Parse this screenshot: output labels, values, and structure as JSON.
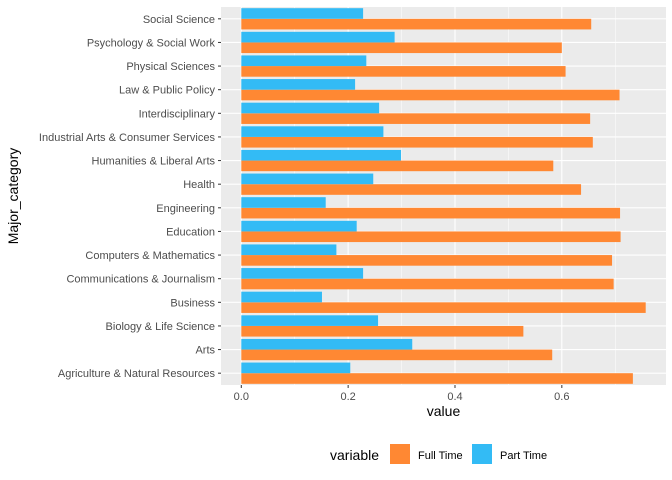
{
  "chart_data": {
    "type": "bar",
    "orientation": "horizontal",
    "position": "dodge",
    "categories": [
      "Agriculture & Natural Resources",
      "Arts",
      "Biology & Life Science",
      "Business",
      "Communications & Journalism",
      "Computers & Mathematics",
      "Education",
      "Engineering",
      "Health",
      "Humanities & Liberal Arts",
      "Industrial Arts & Consumer Services",
      "Interdisciplinary",
      "Law & Public Policy",
      "Physical Sciences",
      "Psychology & Social Work",
      "Social Science"
    ],
    "series": [
      {
        "name": "Full Time",
        "color": "#FF8833",
        "values": [
          0.733,
          0.582,
          0.528,
          0.757,
          0.697,
          0.694,
          0.71,
          0.709,
          0.636,
          0.584,
          0.658,
          0.653,
          0.708,
          0.607,
          0.6,
          0.655
        ]
      },
      {
        "name": "Part Time",
        "color": "#33BBF5",
        "values": [
          0.204,
          0.32,
          0.256,
          0.151,
          0.228,
          0.178,
          0.216,
          0.158,
          0.247,
          0.299,
          0.266,
          0.258,
          0.213,
          0.234,
          0.287,
          0.228
        ]
      }
    ],
    "xlabel": "value",
    "ylabel": "Major_category",
    "xlim": [
      -0.038,
      0.795
    ],
    "xticks": [
      0.0,
      0.2,
      0.4,
      0.6
    ],
    "xtick_labels": [
      "0.0",
      "0.2",
      "0.4",
      "0.6"
    ],
    "legend": {
      "title": "variable",
      "position": "bottom"
    },
    "grid": true,
    "panel_background": "#EBEBEB"
  }
}
